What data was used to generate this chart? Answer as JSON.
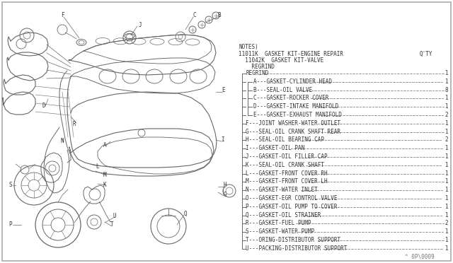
{
  "bg_color": "#ffffff",
  "line_color": "#666666",
  "text_color": "#333333",
  "notes_header": "NOTES)",
  "kit_line1": "11011K  GASKET KIT-ENGINE REPAIR",
  "kit_qty_header": "Q'TY",
  "kit_line2": "  11042K  GASKET KIT-VALVE",
  "regrind_line": "    REGRIND",
  "parts": [
    [
      "",
      "REGRIND",
      "1"
    ],
    [
      "A",
      "GASKET-CYLINDER HEAD",
      "1"
    ],
    [
      "B",
      "SEAL-OIL VALVE",
      "8"
    ],
    [
      "C",
      "GASKET-ROCKER COVER",
      "1"
    ],
    [
      "D",
      "GASKET-INTAKE MANIFOLD",
      "1"
    ],
    [
      "E",
      "GASKET-EXHAUST MANIFOLD",
      "2"
    ],
    [
      "F",
      "JOINT WASHER-WATER OUTLET",
      "1"
    ],
    [
      "G",
      "SEAL-OIL CRANK SHAFT REAR",
      "1"
    ],
    [
      "H",
      "SEAL-OIL BEARING CAP",
      "2"
    ],
    [
      "I",
      "GASKET-OIL PAN",
      "1"
    ],
    [
      "J",
      "GASKET-OIL FILLER CAP",
      "1"
    ],
    [
      "K",
      "SEAL-OIL CRANK SHAFT",
      "1"
    ],
    [
      "L",
      "GASKET-FRONT COVER RH",
      "1"
    ],
    [
      "M",
      "GASKET-FRONT COVER LH",
      "1"
    ],
    [
      "N",
      "GASKET-WATER INLET",
      "1"
    ],
    [
      "O",
      "GASKET-EGR CONTROL VALVE",
      "1"
    ],
    [
      "P",
      "GASKET-OIL PUMP TO COVER",
      "1"
    ],
    [
      "Q",
      "GASKET-OIL STRAINER",
      "1"
    ],
    [
      "R",
      "GASKET-FUEL PUMP",
      "2"
    ],
    [
      "S",
      "GASKET-WATER PUMP",
      "1"
    ],
    [
      "T",
      "ORING-DISTRIBUTOR SUPPORT",
      "1"
    ],
    [
      "U",
      "PACKING-DISTRIBUTOR SUPPORT",
      "1"
    ]
  ],
  "footer_text": "^ 0P\\0009",
  "fig_width": 6.4,
  "fig_height": 3.72,
  "dpi": 100
}
